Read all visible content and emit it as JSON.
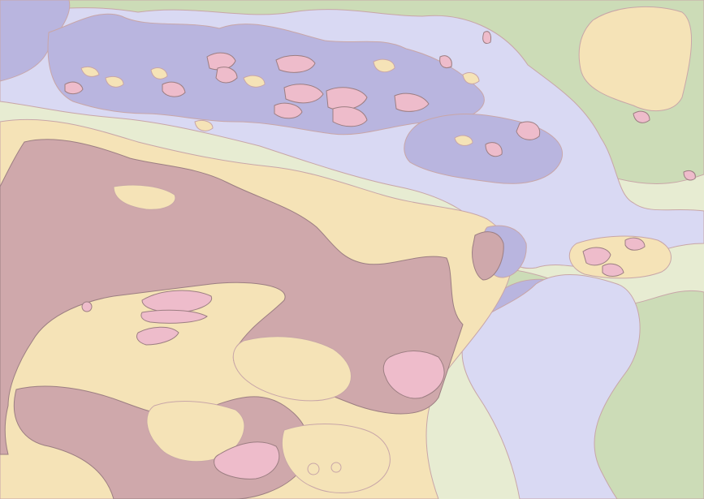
{
  "map": {
    "type": "choropleth-contour",
    "colors": {
      "background": "#ffffff",
      "very_low": "#b9b5df",
      "low": "#d9d9f3",
      "medium_low": "#ccdcb7",
      "medium": "#e7ecd2",
      "medium_high": "#f5e3b7",
      "high": "#cfa8ab",
      "very_high": "#eebccb",
      "contour_line": "#c8a6a8",
      "edge_line": "#9c7e82"
    }
  }
}
